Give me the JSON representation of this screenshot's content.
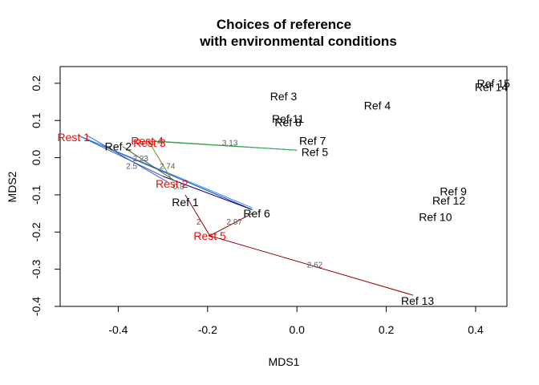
{
  "chart_data": {
    "type": "scatter",
    "title": "Choices of reference",
    "subtitle": "with environmental conditions",
    "xlabel": "MDS1",
    "ylabel": "MDS2",
    "xlim": [
      -0.53,
      0.47
    ],
    "ylim": [
      -0.4,
      0.245
    ],
    "xticks": [
      -0.4,
      -0.2,
      0.0,
      0.2,
      0.4
    ],
    "xtick_labels": [
      "-0.4",
      "-0.2",
      "0.0",
      "0.2",
      "0.4"
    ],
    "yticks": [
      -0.4,
      -0.3,
      -0.2,
      -0.1,
      0.0,
      0.1,
      0.2
    ],
    "ytick_labels": [
      "-0.4",
      "-0.3",
      "-0.2",
      "-0.1",
      "0.0",
      "0.1",
      "0.2"
    ],
    "grid": false,
    "points": [
      {
        "label": "Rest 1",
        "x": -0.5,
        "y": 0.055,
        "group": "rest"
      },
      {
        "label": "Rest 2",
        "x": -0.28,
        "y": -0.07,
        "group": "rest"
      },
      {
        "label": "Rest 3",
        "x": -0.33,
        "y": 0.04,
        "group": "rest"
      },
      {
        "label": "Rest 4",
        "x": -0.335,
        "y": 0.045,
        "group": "rest"
      },
      {
        "label": "Rest 5",
        "x": -0.195,
        "y": -0.21,
        "group": "rest"
      },
      {
        "label": "Ref 1",
        "x": -0.25,
        "y": -0.12,
        "group": "ref"
      },
      {
        "label": "Ref 2",
        "x": -0.4,
        "y": 0.03,
        "group": "ref"
      },
      {
        "label": "Ref 3",
        "x": -0.03,
        "y": 0.165,
        "group": "ref"
      },
      {
        "label": "Ref 4",
        "x": 0.18,
        "y": 0.14,
        "group": "ref"
      },
      {
        "label": "Ref 5",
        "x": 0.04,
        "y": 0.015,
        "group": "ref"
      },
      {
        "label": "Ref 6",
        "x": -0.09,
        "y": -0.15,
        "group": "ref"
      },
      {
        "label": "Ref 7",
        "x": 0.035,
        "y": 0.045,
        "group": "ref"
      },
      {
        "label": "Ref 8",
        "x": -0.02,
        "y": 0.095,
        "group": "ref"
      },
      {
        "label": "Ref 9",
        "x": 0.35,
        "y": -0.09,
        "group": "ref"
      },
      {
        "label": "Ref 10",
        "x": 0.31,
        "y": -0.16,
        "group": "ref"
      },
      {
        "label": "Ref 11",
        "x": -0.02,
        "y": 0.105,
        "group": "ref"
      },
      {
        "label": "Ref 12",
        "x": 0.34,
        "y": -0.115,
        "group": "ref"
      },
      {
        "label": "Ref 13",
        "x": 0.27,
        "y": -0.385,
        "group": "ref"
      },
      {
        "label": "Ref 14",
        "x": 0.435,
        "y": 0.19,
        "group": "ref"
      },
      {
        "label": "Ref 15",
        "x": 0.44,
        "y": 0.2,
        "group": "ref"
      }
    ],
    "edges": [
      {
        "from": [
          -0.49,
          0.06
        ],
        "to": [
          -0.3,
          -0.05
        ],
        "color": "#4060a0",
        "label": ""
      },
      {
        "from": [
          -0.49,
          0.06
        ],
        "to": [
          -0.1,
          -0.14
        ],
        "color": "#2040a0",
        "label": ""
      },
      {
        "from": [
          -0.49,
          0.06
        ],
        "to": [
          -0.1,
          -0.135
        ],
        "color": "#1e90ff",
        "label": "2.5",
        "label_pos": [
          -0.37,
          -0.03
        ]
      },
      {
        "from": [
          -0.47,
          0.06
        ],
        "to": [
          -0.29,
          -0.065
        ],
        "color": "#3a5fcd",
        "label": "2.23",
        "label_pos": [
          -0.35,
          -0.01
        ]
      },
      {
        "from": [
          -0.3,
          -0.05
        ],
        "to": [
          -0.1,
          -0.14
        ],
        "color": "#000080",
        "label": "",
        "label_pos": [
          -0.19,
          -0.11
        ]
      },
      {
        "from": [
          -0.335,
          0.045
        ],
        "to": [
          0.0,
          0.02
        ],
        "color": "#228b22",
        "label": "3.13",
        "label_pos": [
          -0.15,
          0.032
        ]
      },
      {
        "from": [
          -0.32,
          0.045
        ],
        "to": [
          0.0,
          0.02
        ],
        "color": "#32a852",
        "label": "",
        "label_pos": [
          -0.36,
          0.043
        ]
      },
      {
        "from": [
          -0.33,
          0.04
        ],
        "to": [
          -0.28,
          -0.06
        ],
        "color": "#6b8e23",
        "label": "0.8",
        "label_pos": [
          -0.265,
          -0.085
        ]
      },
      {
        "from": [
          -0.39,
          0.03
        ],
        "to": [
          -0.27,
          -0.065
        ],
        "color": "#556b2f",
        "label": "2.74",
        "label_pos": [
          -0.29,
          -0.03
        ]
      },
      {
        "from": [
          -0.25,
          -0.1
        ],
        "to": [
          -0.195,
          -0.21
        ],
        "color": "#8b0000",
        "label": "2",
        "label_pos": [
          -0.22,
          -0.18
        ]
      },
      {
        "from": [
          -0.195,
          -0.21
        ],
        "to": [
          -0.1,
          -0.15
        ],
        "color": "#8b0000",
        "label": "2.97",
        "label_pos": [
          -0.14,
          -0.18
        ]
      },
      {
        "from": [
          -0.195,
          -0.21
        ],
        "to": [
          0.26,
          -0.37
        ],
        "color": "#8b0000",
        "label": "2.62",
        "label_pos": [
          0.04,
          -0.295
        ]
      }
    ]
  },
  "colors": {
    "rest_label": "#ff0000",
    "ref_label": "#000000",
    "axis": "#000000"
  }
}
